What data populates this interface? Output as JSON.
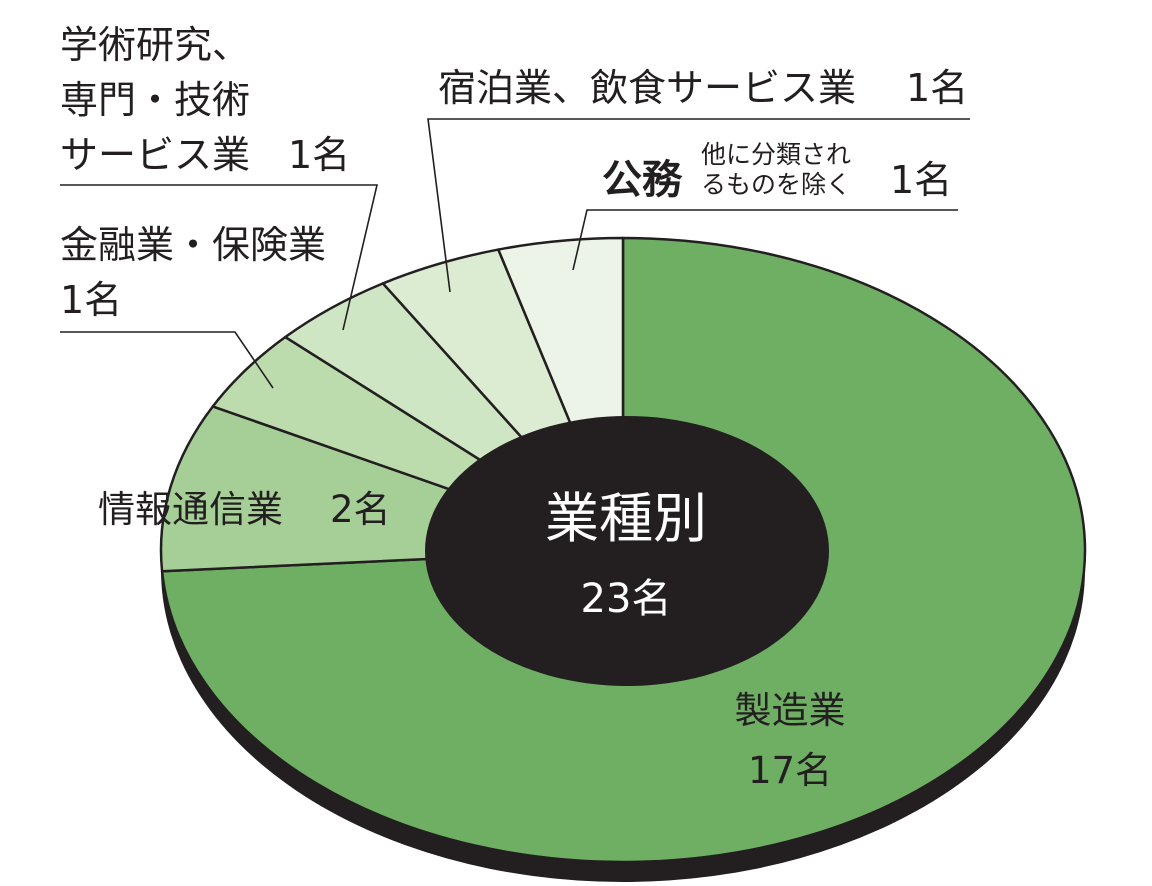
{
  "chart_data": {
    "type": "pie",
    "title": "業種別",
    "total_label": "23名",
    "total": 23,
    "slices": [
      {
        "key": "manufacturing",
        "label": "製造業",
        "count_label": "17名",
        "value": 17,
        "color": "#6faf64"
      },
      {
        "key": "ict",
        "label": "情報通信業",
        "count_label": "2名",
        "value": 2,
        "color": "#a6cf98"
      },
      {
        "key": "finance",
        "label": "金融業・保険業",
        "count_label": "1名",
        "value": 1,
        "color": "#bcdcae"
      },
      {
        "key": "research",
        "label_lines": [
          "学術研究、",
          "専門・技術",
          "サービス業"
        ],
        "count_label": "1名",
        "value": 1,
        "color": "#cfe6c4"
      },
      {
        "key": "hospitality",
        "label": "宿泊業、飲食サービス業",
        "count_label": "1名",
        "value": 1,
        "color": "#dcecd3"
      },
      {
        "key": "public",
        "label": "公務",
        "note_lines": [
          "他に分類され",
          "るものを除く"
        ],
        "count_label": "1名",
        "value": 1,
        "color": "#ebf4e6"
      }
    ],
    "shadow_color": "#231f20",
    "center_color": "#231f20"
  }
}
